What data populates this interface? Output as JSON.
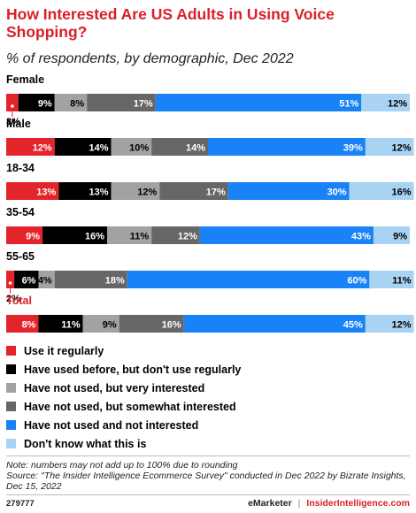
{
  "title": "How Interested Are US Adults in Using Voice Shopping?",
  "subtitle": "% of respondents, by demographic, Dec 2022",
  "chart_data": {
    "type": "bar",
    "orientation": "horizontal-stacked-100",
    "categories": [
      "Female",
      "Male",
      "18-34",
      "35-54",
      "55-65",
      "Total"
    ],
    "highlight_category": "Total",
    "series": [
      {
        "name": "Use it regularly",
        "color": "#e3242b",
        "values": [
          3,
          12,
          13,
          9,
          2,
          8
        ],
        "labels": [
          "3%",
          "12%",
          "13%",
          "9%",
          "2%",
          "8%"
        ]
      },
      {
        "name": "Have used before, but don't use regularly",
        "color": "#000000",
        "values": [
          9,
          14,
          13,
          16,
          6,
          11
        ],
        "labels": [
          "9%",
          "14%",
          "13%",
          "16%",
          "6%",
          "11%"
        ]
      },
      {
        "name": "Have not used, but very interested",
        "color": "#a2a2a2",
        "values": [
          8,
          10,
          12,
          11,
          4,
          9
        ],
        "labels": [
          "8%",
          "10%",
          "12%",
          "11%",
          "4%",
          "9%"
        ]
      },
      {
        "name": "Have not used, but somewhat interested",
        "color": "#666666",
        "values": [
          17,
          14,
          17,
          12,
          18,
          16
        ],
        "labels": [
          "17%",
          "14%",
          "17%",
          "12%",
          "18%",
          "16%"
        ]
      },
      {
        "name": "Have not used and not interested",
        "color": "#1a82f7",
        "values": [
          51,
          39,
          30,
          43,
          60,
          45
        ],
        "labels": [
          "51%",
          "39%",
          "30%",
          "43%",
          "60%",
          "45%"
        ]
      },
      {
        "name": "Don't know what this is",
        "color": "#a9d3f2",
        "values": [
          12,
          12,
          16,
          9,
          11,
          12
        ],
        "labels": [
          "12%",
          "12%",
          "16%",
          "9%",
          "11%",
          "12%"
        ]
      }
    ],
    "callouts": [
      {
        "category": "Female",
        "series": "Use it regularly",
        "label": "3%"
      },
      {
        "category": "55-65",
        "series": "Use it regularly",
        "label": "2%"
      }
    ],
    "xlim": [
      0,
      100
    ]
  },
  "notes": {
    "line1": "Note: numbers may not add up to 100% due to rounding",
    "line2": "Source: \"The Insider Intelligence Ecommerce Survey\" conducted in Dec 2022 by Bizrate Insights, Dec 15, 2022"
  },
  "footer": {
    "chart_id": "279777",
    "brand": "eMarketer",
    "separator": "|",
    "brand2": "InsiderIntelligence.com"
  }
}
